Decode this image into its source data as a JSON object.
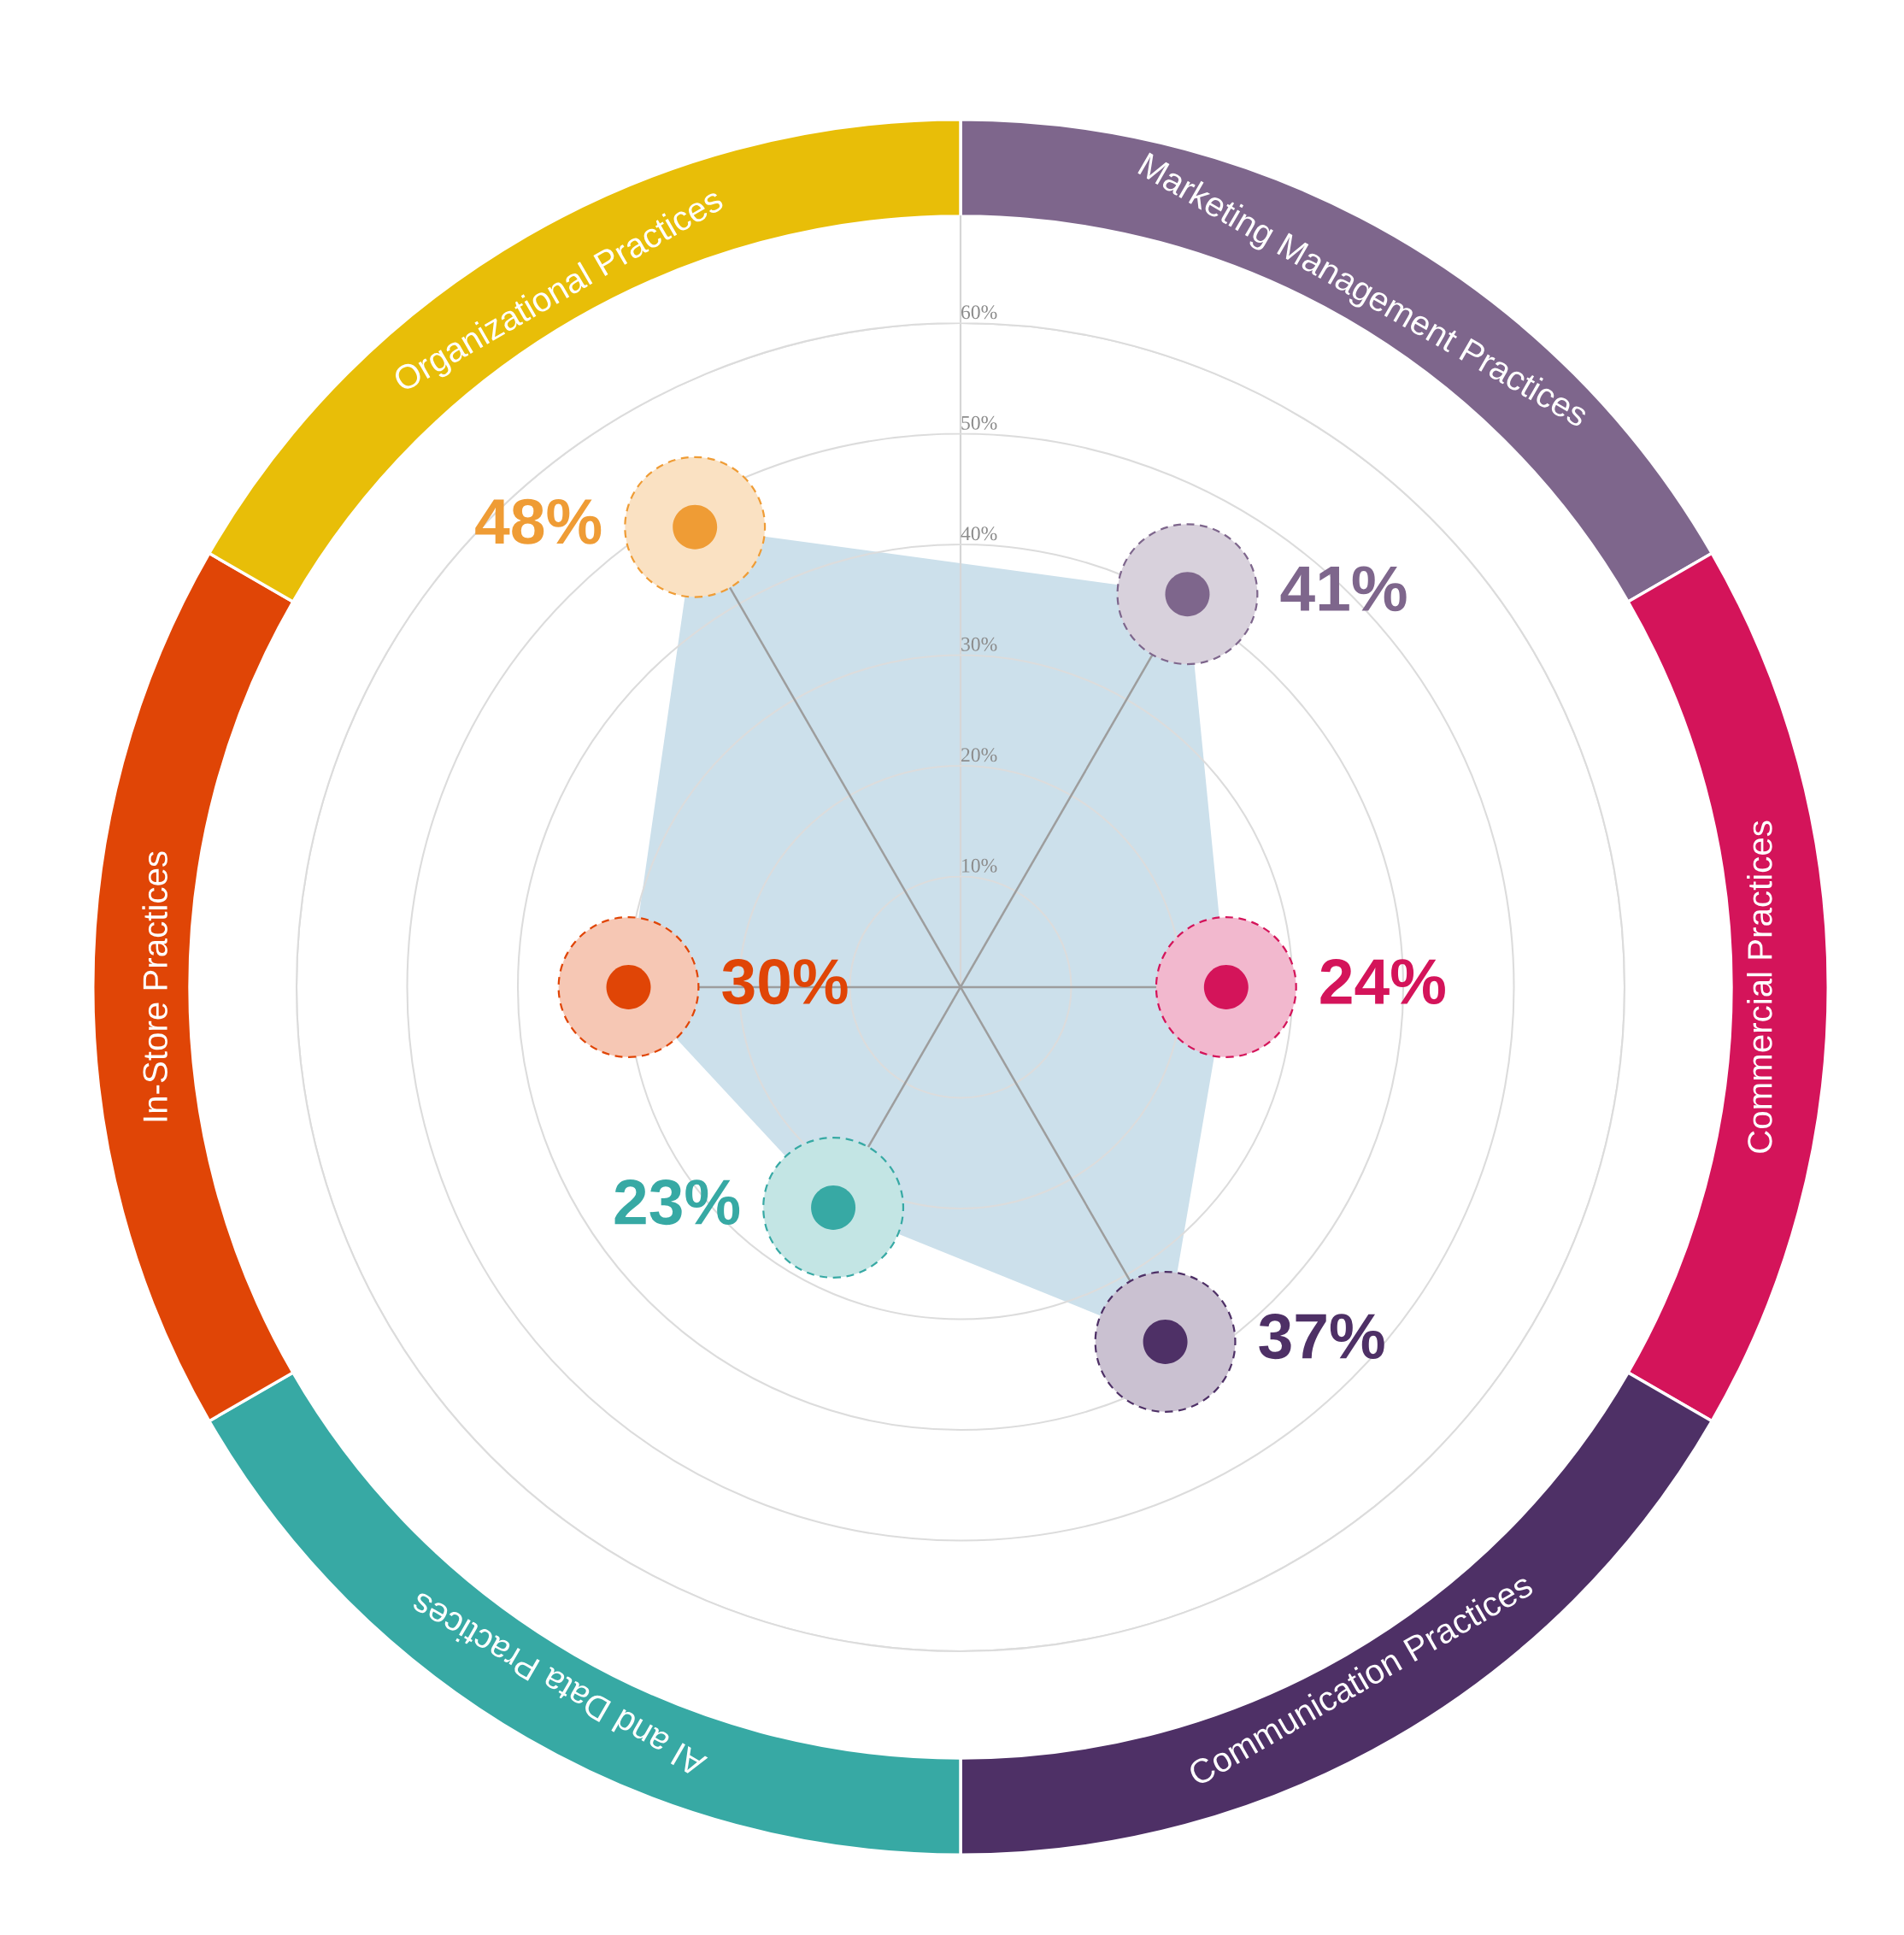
{
  "chart_data": {
    "type": "radar",
    "categories": [
      "Marketing Management Practices",
      "Commercial Practices",
      "Communication Practices",
      "AI and Data Practices",
      "In-Store Practices",
      "Organizational Practices"
    ],
    "ylim": [
      0,
      60
    ],
    "yticks": [
      {
        "value": 10,
        "label": "10%"
      },
      {
        "value": 20,
        "label": "20%"
      },
      {
        "value": 30,
        "label": "30%"
      },
      {
        "value": 40,
        "label": "40%"
      },
      {
        "value": 50,
        "label": "50%"
      },
      {
        "value": 60,
        "label": "60%"
      }
    ],
    "grid": true,
    "marker": "circle",
    "series": [
      {
        "color": "#cce0eb",
        "colors": [
          "#7e668c",
          "#d4145a",
          "#4e3066",
          "#37a9a4",
          "#e04506",
          "#ef9c35"
        ],
        "values": [
          41,
          24,
          37,
          23,
          30,
          48
        ],
        "value_labels": [
          "41%",
          "24%",
          "37%",
          "23%",
          "30%",
          "48%"
        ]
      }
    ]
  }
}
